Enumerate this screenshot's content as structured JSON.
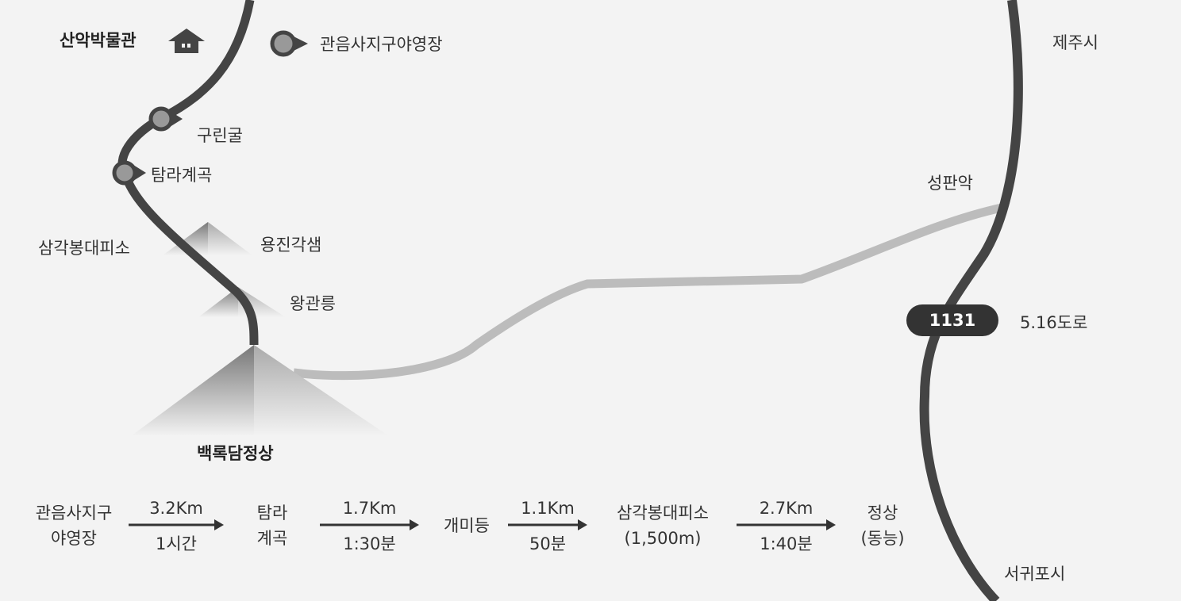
{
  "map": {
    "labels": [
      "산악박물관",
      "관음사지구야영장",
      "구린굴",
      "탐라계곡",
      "삼각봉대피소",
      "용진각샘",
      "왕관릉",
      "백록담정상",
      "성판악",
      "제주시",
      "1131",
      "5.16도로",
      "서귀포시"
    ],
    "route": {
      "stops": [
        {
          "lines": [
            "관음사지구",
            "야영장"
          ]
        },
        {
          "lines": [
            "탐라",
            "계곡"
          ]
        },
        {
          "lines": [
            "개미등"
          ]
        },
        {
          "lines": [
            "삼각봉대피소",
            "(1,500m)"
          ]
        },
        {
          "lines": [
            "정상",
            "(동능)"
          ]
        }
      ],
      "legs": [
        {
          "distance": "3.2Km",
          "time": "1시간"
        },
        {
          "distance": "1.7Km",
          "time": "1:30분"
        },
        {
          "distance": "1.1Km",
          "time": "50분"
        },
        {
          "distance": "2.7Km",
          "time": "1:40분"
        }
      ]
    }
  }
}
